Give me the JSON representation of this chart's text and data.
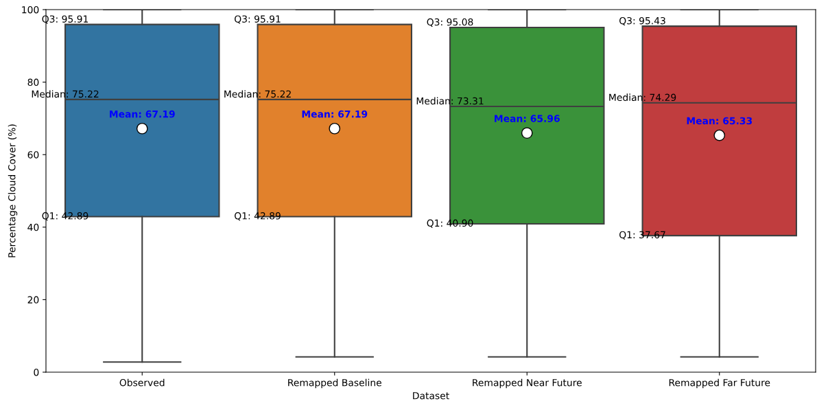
{
  "chart_data": {
    "type": "box",
    "xlabel": "Dataset",
    "ylabel": "Percentage Cloud Cover (%)",
    "categories": [
      "Observed",
      "Remapped Baseline",
      "Remapped Near Future",
      "Remapped Far Future"
    ],
    "colors": [
      "#3274a1",
      "#e1812c",
      "#3a923a",
      "#c03d3e"
    ],
    "boxes": [
      {
        "low": 2.8,
        "q1": 42.89,
        "median": 75.22,
        "q3": 95.91,
        "high": 100,
        "mean": 67.19
      },
      {
        "low": 4.2,
        "q1": 42.89,
        "median": 75.22,
        "q3": 95.91,
        "high": 100,
        "mean": 67.19
      },
      {
        "low": 4.2,
        "q1": 40.9,
        "median": 73.31,
        "q3": 95.08,
        "high": 100,
        "mean": 65.96
      },
      {
        "low": 4.2,
        "q1": 37.67,
        "median": 74.29,
        "q3": 95.43,
        "high": 100,
        "mean": 65.33
      }
    ],
    "ylim": [
      0,
      100
    ],
    "yticks": [
      0,
      20,
      40,
      60,
      80,
      100
    ],
    "grid": false,
    "annotations": [
      "Q3: 95.91",
      "Median: 75.22",
      "Q1: 42.89",
      "Mean: 67.19",
      "Q3: 95.91",
      "Median: 75.22",
      "Q1: 42.89",
      "Mean: 67.19",
      "Q3: 95.08",
      "Median: 73.31",
      "Q1: 40.90",
      "Mean: 65.96",
      "Q3: 95.43",
      "Median: 74.29",
      "Q1: 37.67",
      "Mean: 65.33"
    ]
  }
}
